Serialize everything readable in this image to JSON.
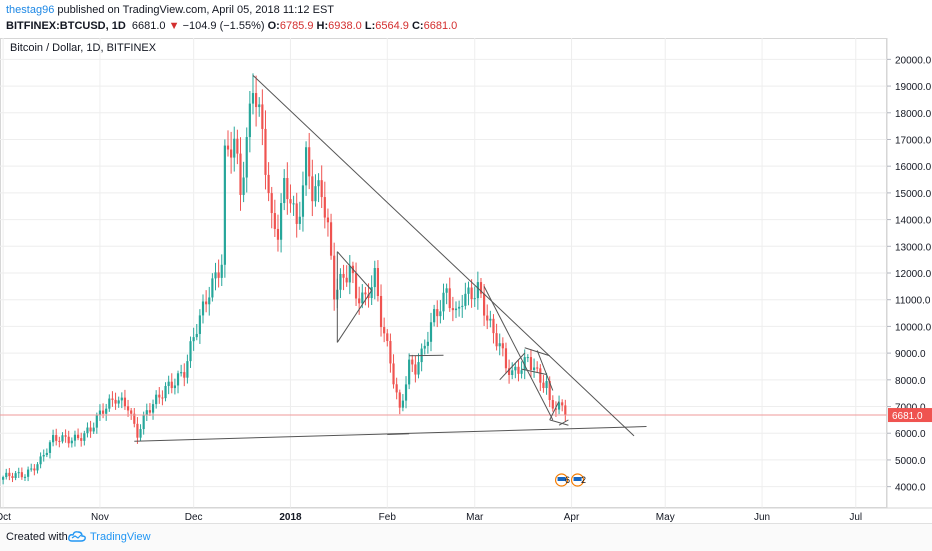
{
  "header": {
    "user": "thestag96",
    "published_text": "published on TradingView.com, April 05, 2018 11:12 EST",
    "symbol": "BITFINEX:BTCUSD, 1D",
    "last": "6681.0",
    "change_arrow": "▼",
    "change": "−104.9 (−1.55%)",
    "open_label": "O:",
    "open": "6785.9",
    "high_label": "H:",
    "high": "6938.0",
    "low_label": "L:",
    "low": "6564.9",
    "close_label": "C:",
    "close": "6681.0"
  },
  "footer": {
    "created_with": "Created with",
    "brand": "TradingView",
    "brand_icon": "tradingview-cloud-icon"
  },
  "colors": {
    "up": "#26a69a",
    "down": "#ef5350",
    "price_line": "#ef9a9a",
    "drawing": "#555555",
    "grid": "#eeeeee",
    "accent": "#1e88e5"
  },
  "chart_data": {
    "type": "candlestick",
    "title": "Bitcoin / Dollar, 1D, BITFINEX",
    "last_price_label": "6681.0",
    "y_ticks": [
      "20000.0",
      "19000.0",
      "18000.0",
      "17000.0",
      "16000.0",
      "15000.0",
      "14000.0",
      "13000.0",
      "12000.0",
      "11000.0",
      "10000.0",
      "9000.0",
      "8000.0",
      "7000.0",
      "6000.0",
      "5000.0",
      "4000.0"
    ],
    "ylim": [
      3200,
      20800
    ],
    "x_ticks": [
      {
        "label": "Oct",
        "day": 0
      },
      {
        "label": "Nov",
        "day": 31
      },
      {
        "label": "Dec",
        "day": 61
      },
      {
        "label": "2018",
        "day": 92
      },
      {
        "label": "Feb",
        "day": 123
      },
      {
        "label": "Mar",
        "day": 151
      },
      {
        "label": "Apr",
        "day": 182
      },
      {
        "label": "May",
        "day": 212
      },
      {
        "label": "Jun",
        "day": 243
      },
      {
        "label": "Jul",
        "day": 273
      }
    ],
    "xlim": [
      -1,
      283
    ],
    "events_badge": [
      "6",
      "2"
    ],
    "anchors": [
      [
        0,
        4300
      ],
      [
        7,
        4500
      ],
      [
        12,
        5000
      ],
      [
        16,
        5700
      ],
      [
        20,
        5800
      ],
      [
        24,
        5900
      ],
      [
        28,
        6100
      ],
      [
        32,
        6800
      ],
      [
        36,
        7400
      ],
      [
        40,
        7100
      ],
      [
        42,
        6200
      ],
      [
        43,
        5900
      ],
      [
        46,
        6700
      ],
      [
        52,
        7800
      ],
      [
        58,
        8200
      ],
      [
        62,
        9900
      ],
      [
        66,
        11500
      ],
      [
        70,
        12500
      ],
      [
        71,
        16300
      ],
      [
        74,
        16700
      ],
      [
        76,
        14900
      ],
      [
        78,
        16800
      ],
      [
        80,
        19400
      ],
      [
        83,
        17500
      ],
      [
        86,
        13800
      ],
      [
        88,
        13400
      ],
      [
        90,
        15000
      ],
      [
        92,
        14800
      ],
      [
        94,
        13800
      ],
      [
        97,
        16500
      ],
      [
        99,
        15200
      ],
      [
        102,
        14900
      ],
      [
        104,
        13400
      ],
      [
        106,
        11200
      ],
      [
        108,
        11700
      ],
      [
        111,
        12400
      ],
      [
        113,
        11300
      ],
      [
        116,
        10900
      ],
      [
        119,
        11700
      ],
      [
        121,
        10200
      ],
      [
        124,
        8800
      ],
      [
        127,
        6900
      ],
      [
        130,
        8500
      ],
      [
        132,
        8300
      ],
      [
        134,
        8800
      ],
      [
        138,
        10500
      ],
      [
        142,
        11400
      ],
      [
        145,
        10300
      ],
      [
        147,
        10900
      ],
      [
        150,
        11100
      ],
      [
        152,
        11500
      ],
      [
        155,
        10500
      ],
      [
        157,
        9800
      ],
      [
        159,
        9300
      ],
      [
        161,
        8400
      ],
      [
        163,
        8100
      ],
      [
        166,
        8500
      ],
      [
        168,
        8900
      ],
      [
        170,
        8600
      ],
      [
        172,
        8000
      ],
      [
        174,
        7800
      ],
      [
        175,
        7000
      ],
      [
        177,
        6900
      ],
      [
        179,
        6900
      ],
      [
        180,
        6685
      ]
    ],
    "annotations": [
      {
        "type": "trendline",
        "from": [
          80,
          19400
        ],
        "to": [
          202,
          5900
        ]
      },
      {
        "type": "trendline",
        "from": [
          42,
          5700
        ],
        "to": [
          206,
          6250
        ]
      },
      {
        "type": "trendline",
        "from": [
          123,
          5950
        ],
        "to": [
          130,
          5980
        ]
      },
      {
        "type": "trendline",
        "from": [
          130,
          8900
        ],
        "to": [
          141,
          8920
        ]
      },
      {
        "type": "trendline",
        "from": [
          107,
          12800
        ],
        "to": [
          118,
          11350
        ]
      },
      {
        "type": "trendline",
        "from": [
          107,
          12800
        ],
        "to": [
          107,
          9400
        ]
      },
      {
        "type": "trendline",
        "from": [
          107,
          9400
        ],
        "to": [
          118,
          11350
        ]
      },
      {
        "type": "trendline",
        "from": [
          154,
          11500
        ],
        "to": [
          176,
          6500
        ]
      },
      {
        "type": "trendline",
        "from": [
          159,
          8000
        ],
        "to": [
          167,
          9000
        ]
      },
      {
        "type": "trendline",
        "from": [
          166,
          8400
        ],
        "to": [
          174,
          8200
        ]
      },
      {
        "type": "trendline",
        "from": [
          167,
          9200
        ],
        "to": [
          175,
          8900
        ]
      },
      {
        "type": "trendline",
        "from": [
          171,
          9100
        ],
        "to": [
          176,
          7600
        ]
      },
      {
        "type": "trendline",
        "from": [
          175,
          6500
        ],
        "to": [
          181,
          6300
        ]
      },
      {
        "type": "trendline",
        "from": [
          175,
          6500
        ],
        "to": [
          178,
          7200
        ]
      },
      {
        "type": "trendline",
        "from": [
          178,
          6300
        ],
        "to": [
          181,
          6500
        ]
      }
    ]
  }
}
